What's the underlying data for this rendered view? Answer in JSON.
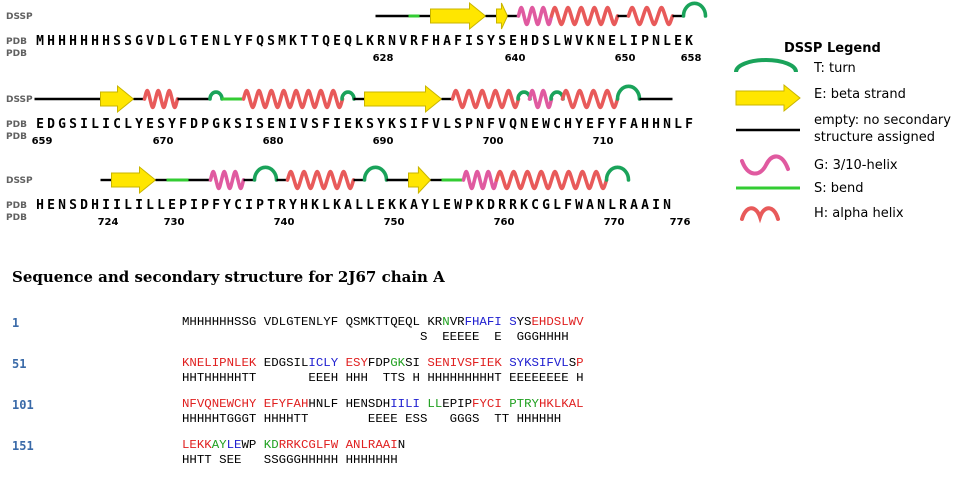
{
  "colors": {
    "turn": "#1aa35a",
    "strand_fill": "#ffe600",
    "strand_stroke": "#c8b400",
    "coil": "#000000",
    "g_helix": "#e05aa0",
    "bend": "#33cc33",
    "h_helix": "#e85a5a",
    "number_color": "#3a6aa8"
  },
  "track_labels": {
    "dssp": "DSSP",
    "pdb": "PDB"
  },
  "tracks": [
    {
      "sequence": "MHHHHHHSSGVDLGTENLYFQSMKTTQEQLKRNVRFHAFISYSEHDSLWVKNELIPNLEK",
      "ticks": [
        {
          "label": "628",
          "index": 31
        },
        {
          "label": "640",
          "index": 43
        },
        {
          "label": "650",
          "index": 53
        },
        {
          "label": "658",
          "index": 59
        }
      ],
      "elements": [
        {
          "type": "coil",
          "start": 31,
          "end": 33
        },
        {
          "type": "bend",
          "start": 34,
          "end": 34
        },
        {
          "type": "coil",
          "start": 35,
          "end": 35
        },
        {
          "type": "strand",
          "start": 36,
          "end": 40
        },
        {
          "type": "coil",
          "start": 41,
          "end": 41
        },
        {
          "type": "strand",
          "start": 42,
          "end": 42
        },
        {
          "type": "coil",
          "start": 43,
          "end": 43
        },
        {
          "type": "g_helix",
          "start": 44,
          "end": 46
        },
        {
          "type": "h_helix",
          "start": 47,
          "end": 52
        },
        {
          "type": "coil",
          "start": 53,
          "end": 53
        },
        {
          "type": "h_helix",
          "start": 54,
          "end": 57
        },
        {
          "type": "coil",
          "start": 58,
          "end": 58
        },
        {
          "type": "turn",
          "start": 59,
          "end": 60
        }
      ]
    },
    {
      "sequence": "EDGSILICLYESYFDPGKSISENIVSFIEKSYKSIFVLSPNFVQNEWCHYEFYFAHHNLF",
      "ticks": [
        {
          "label": "659",
          "index": 0
        },
        {
          "label": "670",
          "index": 11
        },
        {
          "label": "680",
          "index": 21
        },
        {
          "label": "690",
          "index": 31
        },
        {
          "label": "700",
          "index": 41
        },
        {
          "label": "710",
          "index": 51
        }
      ],
      "elements": [
        {
          "type": "coil",
          "start": 0,
          "end": 1
        },
        {
          "type": "coil",
          "start": 2,
          "end": 5
        },
        {
          "type": "strand",
          "start": 6,
          "end": 8
        },
        {
          "type": "coil",
          "start": 9,
          "end": 9
        },
        {
          "type": "h_helix",
          "start": 10,
          "end": 12
        },
        {
          "type": "coil",
          "start": 13,
          "end": 15
        },
        {
          "type": "turn",
          "start": 16,
          "end": 16
        },
        {
          "type": "bend",
          "start": 17,
          "end": 18
        },
        {
          "type": "h_helix",
          "start": 19,
          "end": 27
        },
        {
          "type": "turn",
          "start": 28,
          "end": 28
        },
        {
          "type": "coil",
          "start": 29,
          "end": 29
        },
        {
          "type": "strand",
          "start": 30,
          "end": 36
        },
        {
          "type": "coil",
          "start": 37,
          "end": 37
        },
        {
          "type": "h_helix",
          "start": 38,
          "end": 43
        },
        {
          "type": "turn",
          "start": 44,
          "end": 44
        },
        {
          "type": "g_helix",
          "start": 45,
          "end": 46
        },
        {
          "type": "turn",
          "start": 47,
          "end": 47
        },
        {
          "type": "h_helix",
          "start": 48,
          "end": 52
        },
        {
          "type": "turn",
          "start": 53,
          "end": 54
        },
        {
          "type": "coil",
          "start": 55,
          "end": 57
        }
      ]
    },
    {
      "sequence": "HENSDHIILILLEPIPFYCIPTRYHKLKALLEKKAYLEWPKDRRKCGLFWANLRAAIN",
      "ticks": [
        {
          "label": "724",
          "index": 6
        },
        {
          "label": "730",
          "index": 12
        },
        {
          "label": "740",
          "index": 22
        },
        {
          "label": "750",
          "index": 32
        },
        {
          "label": "760",
          "index": 42
        },
        {
          "label": "770",
          "index": 52
        },
        {
          "label": "776",
          "index": 58
        }
      ],
      "elements": [
        {
          "type": "coil",
          "start": 6,
          "end": 6
        },
        {
          "type": "strand",
          "start": 7,
          "end": 10
        },
        {
          "type": "coil",
          "start": 11,
          "end": 11
        },
        {
          "type": "bend",
          "start": 12,
          "end": 13
        },
        {
          "type": "coil",
          "start": 14,
          "end": 15
        },
        {
          "type": "g_helix",
          "start": 16,
          "end": 18
        },
        {
          "type": "coil",
          "start": 19,
          "end": 19
        },
        {
          "type": "turn",
          "start": 20,
          "end": 21
        },
        {
          "type": "coil",
          "start": 22,
          "end": 22
        },
        {
          "type": "h_helix",
          "start": 23,
          "end": 28
        },
        {
          "type": "coil",
          "start": 29,
          "end": 29
        },
        {
          "type": "turn",
          "start": 30,
          "end": 31
        },
        {
          "type": "coil",
          "start": 32,
          "end": 33
        },
        {
          "type": "strand",
          "start": 34,
          "end": 35
        },
        {
          "type": "coil",
          "start": 36,
          "end": 36
        },
        {
          "type": "bend",
          "start": 37,
          "end": 38
        },
        {
          "type": "g_helix",
          "start": 39,
          "end": 41
        },
        {
          "type": "h_helix",
          "start": 42,
          "end": 51
        },
        {
          "type": "turn",
          "start": 52,
          "end": 53
        }
      ]
    }
  ],
  "legend": {
    "title": "DSSP Legend",
    "items": [
      {
        "type": "turn",
        "label": "T: turn"
      },
      {
        "type": "strand",
        "label": "E: beta strand"
      },
      {
        "type": "coil",
        "label": "empty: no secondary",
        "label2": "structure assigned"
      },
      {
        "type": "g_helix",
        "label": "G: 3/10-helix"
      },
      {
        "type": "bend",
        "label": "S: bend"
      },
      {
        "type": "h_helix",
        "label": "H: alpha helix"
      }
    ]
  },
  "sequence_view": {
    "heading": "Sequence and secondary structure for 2J67 chain A",
    "rows": [
      {
        "number": "1",
        "segments": [
          {
            "t": "MHHHHHHSSG VDLGTENLYF QSMKTTQEQL KR",
            "c": "black"
          },
          {
            "t": "N",
            "c": "green"
          },
          {
            "t": "VR",
            "c": "black"
          },
          {
            "t": "FHAFI",
            "c": "blue"
          },
          {
            "t": " ",
            "c": "black"
          },
          {
            "t": "S",
            "c": "blue"
          },
          {
            "t": "YS",
            "c": "black"
          },
          {
            "t": "EHDSLWV",
            "c": "red"
          }
        ],
        "ss": "                                S  EEEEE  E  GGGHHHH"
      },
      {
        "number": "51",
        "segments": [
          {
            "t": "KNELIPNLEK",
            "c": "red"
          },
          {
            "t": " EDGSIL",
            "c": "black"
          },
          {
            "t": "ICLY",
            "c": "blue"
          },
          {
            "t": " ",
            "c": "black"
          },
          {
            "t": "ESY",
            "c": "red"
          },
          {
            "t": "FDP",
            "c": "black"
          },
          {
            "t": "GK",
            "c": "green"
          },
          {
            "t": "SI",
            "c": "black"
          },
          {
            "t": " SENIVSFIEK",
            "c": "red"
          },
          {
            "t": " ",
            "c": "black"
          },
          {
            "t": "SYKSIFVL",
            "c": "blue"
          },
          {
            "t": "S",
            "c": "black"
          },
          {
            "t": "P",
            "c": "red"
          }
        ],
        "ss": "HHTHHHHHTT       EEEH HHH  TTS H HHHHHHHHHT EEEEEEEE H"
      },
      {
        "number": "101",
        "segments": [
          {
            "t": "NFVQNEWCHY",
            "c": "red"
          },
          {
            "t": " ",
            "c": "black"
          },
          {
            "t": "EFYFAH",
            "c": "red"
          },
          {
            "t": "HNLF HENSDH",
            "c": "black"
          },
          {
            "t": "IILI",
            "c": "blue"
          },
          {
            "t": " ",
            "c": "black"
          },
          {
            "t": "LL",
            "c": "green"
          },
          {
            "t": "EPIP",
            "c": "black"
          },
          {
            "t": "FYCI",
            "c": "red"
          },
          {
            "t": " ",
            "c": "black"
          },
          {
            "t": "PTRY",
            "c": "green"
          },
          {
            "t": "HKLKAL",
            "c": "red"
          }
        ],
        "ss": "HHHHHTGGGT HHHHTT        EEEE ESS   GGGS  TT HHHHHH"
      },
      {
        "number": "151",
        "segments": [
          {
            "t": "LEKK",
            "c": "red"
          },
          {
            "t": "AY",
            "c": "green"
          },
          {
            "t": "LE",
            "c": "blue"
          },
          {
            "t": "WP",
            "c": "black"
          },
          {
            "t": " KD",
            "c": "green"
          },
          {
            "t": "RRKCGLFW",
            "c": "red"
          },
          {
            "t": " ANLRAAI",
            "c": "red"
          },
          {
            "t": "N",
            "c": "black"
          }
        ],
        "ss": "HHTT SEE   SSGGGHHHHH HHHHHHH"
      }
    ]
  }
}
